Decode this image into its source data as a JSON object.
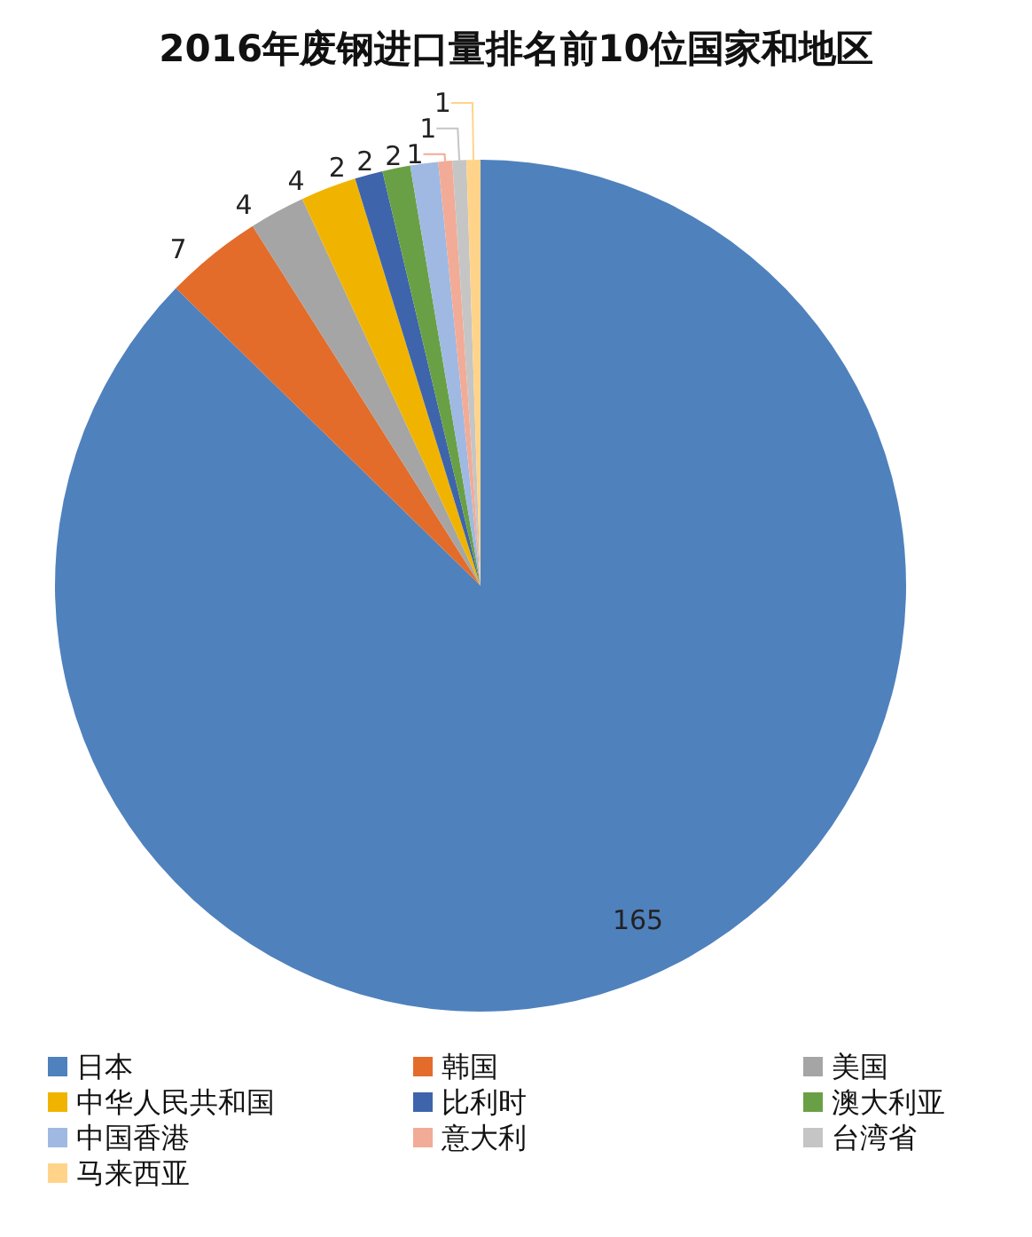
{
  "chart_data": {
    "type": "pie",
    "title": "2016年废钢进口量排名前10位国家和地区",
    "categories": [
      "日本",
      "韩国",
      "美国",
      "中华人民共和国",
      "比利时",
      "澳大利亚",
      "中国香港",
      "意大利",
      "台湾省",
      "马来西亚"
    ],
    "values": [
      165,
      7,
      4,
      4,
      2,
      2,
      2,
      1,
      1,
      1
    ],
    "colors": [
      "#4f81bd",
      "#e36c2b",
      "#a5a5a5",
      "#f0b400",
      "#3e64ab",
      "#6aa045",
      "#9fb9e2",
      "#f2ab96",
      "#c5c5c5",
      "#ffd48a"
    ],
    "data_labels": true,
    "legend": "bottom"
  }
}
